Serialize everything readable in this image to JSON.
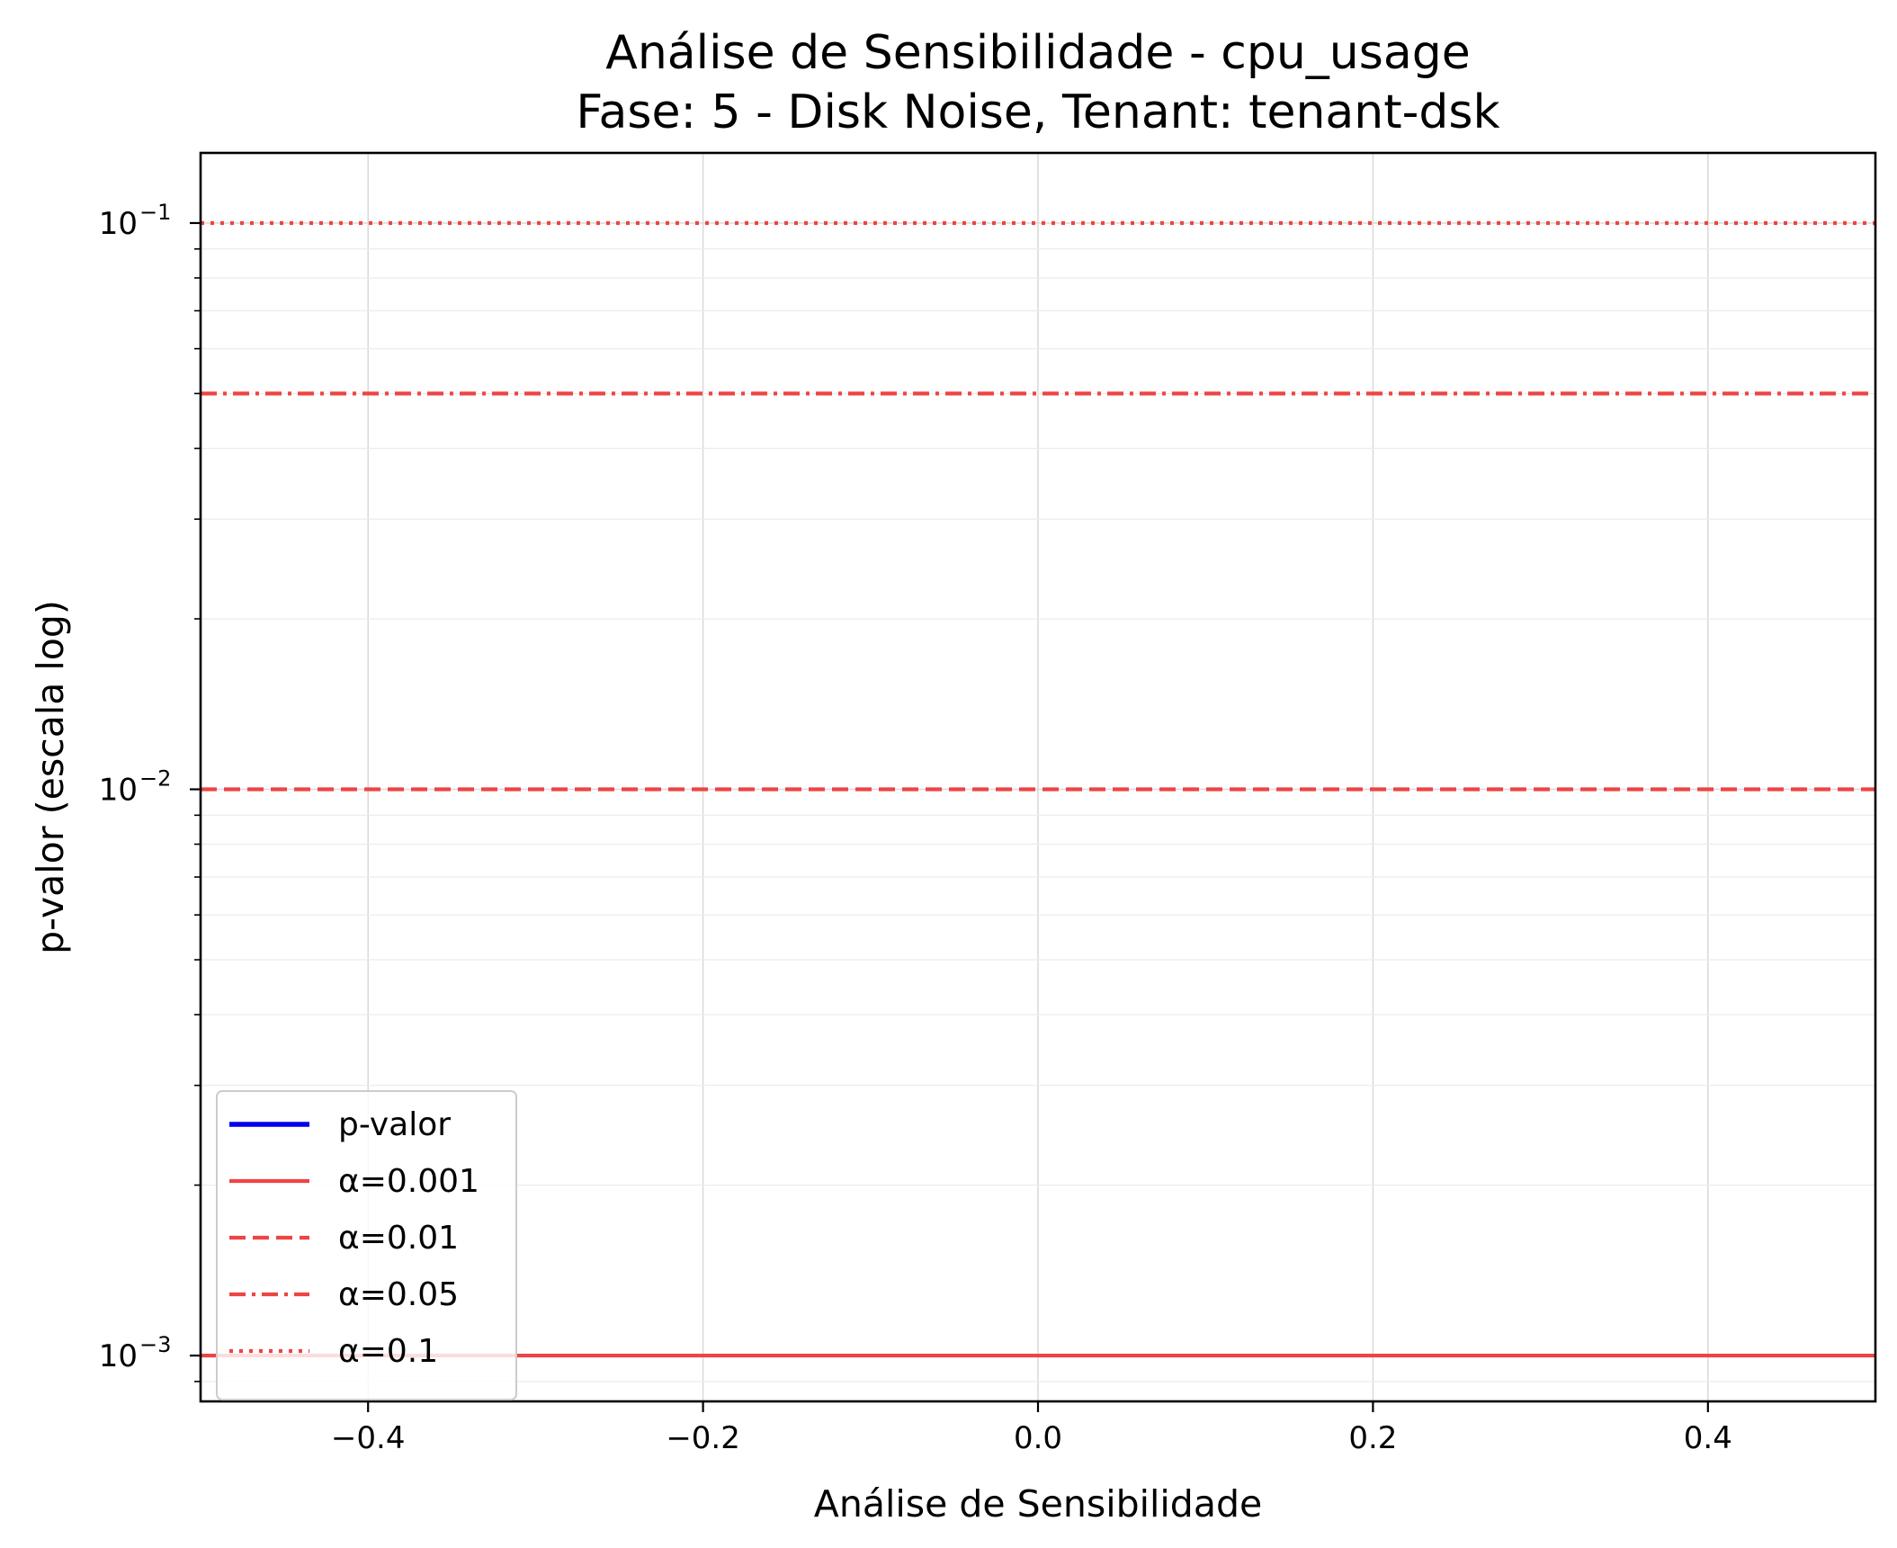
{
  "chart_data": {
    "type": "line",
    "title_lines": [
      "Análise de Sensibilidade - cpu_usage",
      "Fase: 5 - Disk Noise, Tenant: tenant-dsk"
    ],
    "xlabel": "Análise de Sensibilidade",
    "ylabel": "p-valor (escala log)",
    "xlim": [
      -0.5,
      0.5
    ],
    "ylim": [
      0.00083,
      0.133
    ],
    "y_scale": "log",
    "grid": true,
    "x_ticks": [
      {
        "value": -0.4,
        "label": "−0.4"
      },
      {
        "value": -0.2,
        "label": "−0.2"
      },
      {
        "value": 0.0,
        "label": "0.0"
      },
      {
        "value": 0.2,
        "label": "0.2"
      },
      {
        "value": 0.4,
        "label": "0.4"
      }
    ],
    "y_ticks": [
      {
        "value": 0.1,
        "base": "10",
        "exp": "−1"
      },
      {
        "value": 0.01,
        "base": "10",
        "exp": "−2"
      },
      {
        "value": 0.001,
        "base": "10",
        "exp": "−3"
      }
    ],
    "series": [
      {
        "name": "p-valor",
        "color": "#0000ee",
        "dash": "solid",
        "x": [],
        "y": []
      }
    ],
    "reference_lines": [
      {
        "name": "α=0.001",
        "value": 0.001,
        "color": "#ee4444",
        "dash": "solid"
      },
      {
        "name": "α=0.01",
        "value": 0.01,
        "color": "#ee4444",
        "dash": "dashed"
      },
      {
        "name": "α=0.05",
        "value": 0.05,
        "color": "#ee4444",
        "dash": "dashdot"
      },
      {
        "name": "α=0.1",
        "value": 0.1,
        "color": "#ee4444",
        "dash": "dotted"
      }
    ],
    "legend_position": "lower-left"
  }
}
